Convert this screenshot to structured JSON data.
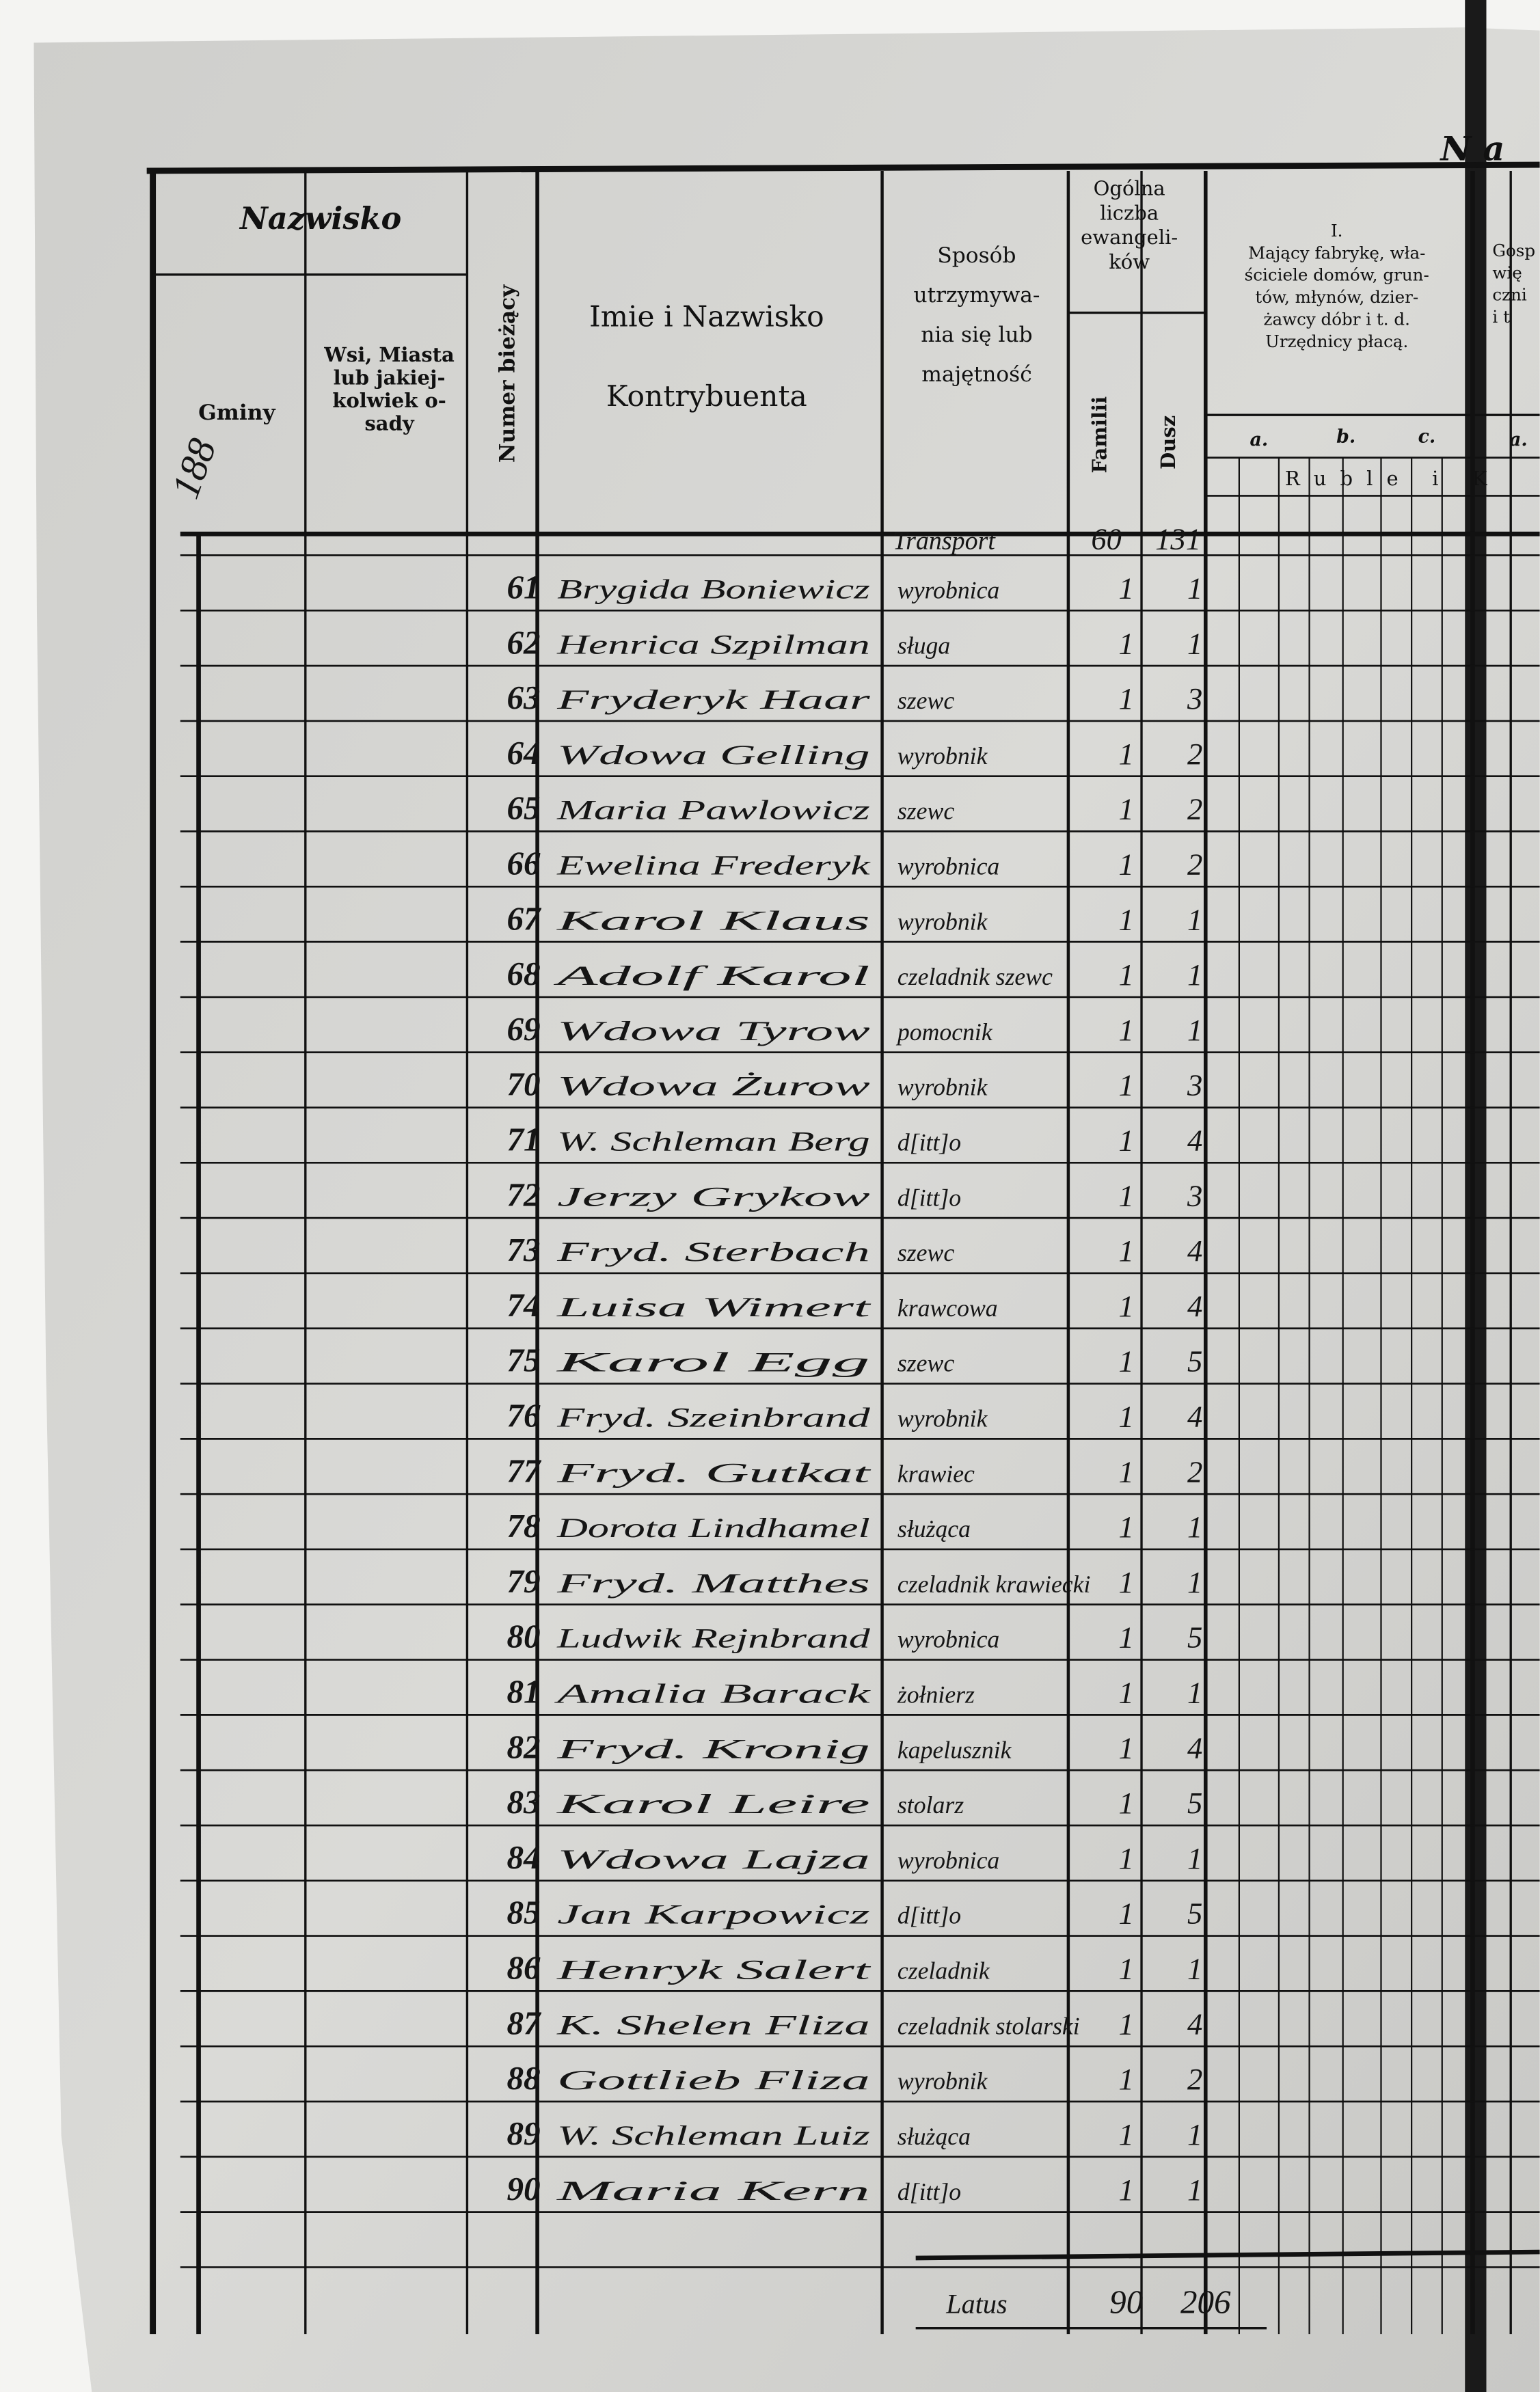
{
  "page_number": "188",
  "header": {
    "section_title": "N a",
    "nazwisko": "Nazwisko",
    "gminy": "Gminy",
    "wsi": [
      "Wsi, Miasta",
      "lub jakiej-",
      "kolwiek o-",
      "sady"
    ],
    "numer": "Numer bieżący",
    "imie": [
      "Imie i Nazwisko",
      "Kontrybuenta"
    ],
    "sposob": [
      "Sposób",
      "utrzymywa-",
      "nia się lub",
      "majętność"
    ],
    "ogolna": [
      "Ogólna",
      "liczba",
      "ewangeli-",
      "ków"
    ],
    "familii": "Familii",
    "dusz": "Dusz",
    "class_one": [
      "I.",
      "Mający fabrykę, wła-",
      "ściciele domów, grun-",
      "tów, młynów, dzier-",
      "żawcy dóbr i t. d.",
      "Urzędnicy płacą."
    ],
    "sub_a": "a.",
    "sub_b": "b.",
    "sub_c": "c.",
    "sub_a2": "a.",
    "currency": "Ruble i K",
    "next_class": [
      "Gosp",
      "wię",
      "czni",
      "i t"
    ]
  },
  "transport": {
    "label": "Transport",
    "familii": 60,
    "dusz": 131
  },
  "rows": [
    {
      "number": "61",
      "name": "Brygida Boniewicz",
      "occupation": "wyrobnica",
      "familii": 1,
      "dusz": 1
    },
    {
      "number": "62",
      "name": "Henrica Szpilman",
      "occupation": "sługa",
      "familii": 1,
      "dusz": 1
    },
    {
      "number": "63",
      "name": "Fryderyk Haar",
      "occupation": "szewc",
      "familii": 1,
      "dusz": 3
    },
    {
      "number": "64",
      "name": "Wdowa Gelling",
      "occupation": "wyrobnik",
      "familii": 1,
      "dusz": 2
    },
    {
      "number": "65",
      "name": "Maria Pawlowicz",
      "occupation": "szewc",
      "familii": 1,
      "dusz": 2
    },
    {
      "number": "66",
      "name": "Ewelina Frederyk",
      "occupation": "wyrobnica",
      "familii": 1,
      "dusz": 2
    },
    {
      "number": "67",
      "name": "Karol Klaus",
      "occupation": "wyrobnik",
      "familii": 1,
      "dusz": 1
    },
    {
      "number": "68",
      "name": "Adolf Karol",
      "occupation": "czeladnik szewc",
      "familii": 1,
      "dusz": 1
    },
    {
      "number": "69",
      "name": "Wdowa Tyrow",
      "occupation": "pomocnik",
      "familii": 1,
      "dusz": 1
    },
    {
      "number": "70",
      "name": "Wdowa Żurow",
      "occupation": "wyrobnik",
      "familii": 1,
      "dusz": 3
    },
    {
      "number": "71",
      "name": "W. Schleman Berg",
      "occupation": "d[itt]o",
      "familii": 1,
      "dusz": 4
    },
    {
      "number": "72",
      "name": "Jerzy Grykow",
      "occupation": "d[itt]o",
      "familii": 1,
      "dusz": 3
    },
    {
      "number": "73",
      "name": "Fryd. Sterbach",
      "occupation": "szewc",
      "familii": 1,
      "dusz": 4
    },
    {
      "number": "74",
      "name": "Luisa Wimert",
      "occupation": "krawcowa",
      "familii": 1,
      "dusz": 4
    },
    {
      "number": "75",
      "name": "Karol Egg",
      "occupation": "szewc",
      "familii": 1,
      "dusz": 5
    },
    {
      "number": "76",
      "name": "Fryd. Szeinbrand",
      "occupation": "wyrobnik",
      "familii": 1,
      "dusz": 4
    },
    {
      "number": "77",
      "name": "Fryd. Gutkat",
      "occupation": "krawiec",
      "familii": 1,
      "dusz": 2
    },
    {
      "number": "78",
      "name": "Dorota Lindhamel",
      "occupation": "służąca",
      "familii": 1,
      "dusz": 1
    },
    {
      "number": "79",
      "name": "Fryd. Matthes",
      "occupation": "czeladnik krawiecki",
      "familii": 1,
      "dusz": 1
    },
    {
      "number": "80",
      "name": "Ludwik Rejnbrand",
      "occupation": "wyrobnica",
      "familii": 1,
      "dusz": 5
    },
    {
      "number": "81",
      "name": "Amalia Barack",
      "occupation": "żołnierz",
      "familii": 1,
      "dusz": 1
    },
    {
      "number": "82",
      "name": "Fryd. Kronig",
      "occupation": "kapelusznik",
      "familii": 1,
      "dusz": 4
    },
    {
      "number": "83",
      "name": "Karol Leire",
      "occupation": "stolarz",
      "familii": 1,
      "dusz": 5
    },
    {
      "number": "84",
      "name": "Wdowa Lajza",
      "occupation": "wyrobnica",
      "familii": 1,
      "dusz": 1
    },
    {
      "number": "85",
      "name": "Jan Karpowicz",
      "occupation": "d[itt]o",
      "familii": 1,
      "dusz": 5
    },
    {
      "number": "86",
      "name": "Henryk Salert",
      "occupation": "czeladnik",
      "familii": 1,
      "dusz": 1
    },
    {
      "number": "87",
      "name": "K. Shelen Fliza",
      "occupation": "czeladnik stolarski",
      "familii": 1,
      "dusz": 4
    },
    {
      "number": "88",
      "name": "Gottlieb Fliza",
      "occupation": "wyrobnik",
      "familii": 1,
      "dusz": 2
    },
    {
      "number": "89",
      "name": "W. Schleman Luiz",
      "occupation": "służąca",
      "familii": 1,
      "dusz": 1
    },
    {
      "number": "90",
      "name": "Maria Kern",
      "occupation": "d[itt]o",
      "familii": 1,
      "dusz": 1
    }
  ],
  "total": {
    "label": "Latus",
    "familii": 90,
    "dusz": 206
  }
}
